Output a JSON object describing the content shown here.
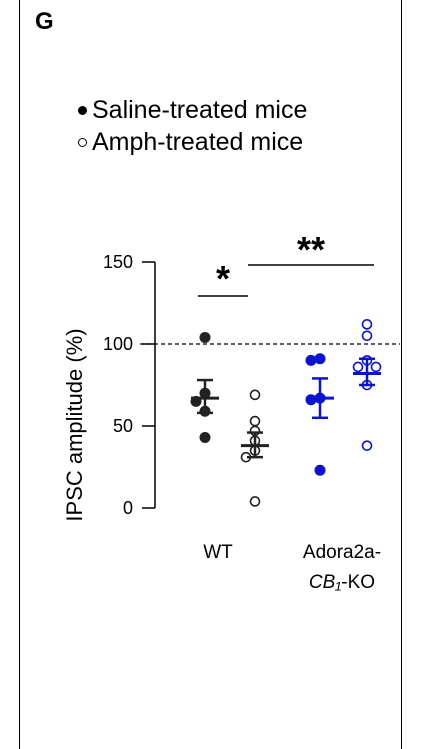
{
  "panel": {
    "letter": "G",
    "legend": [
      {
        "label": "Saline-treated mice",
        "marker": "filled"
      },
      {
        "label": "Amph-treated mice",
        "marker": "open"
      }
    ]
  },
  "chart_data": {
    "type": "scatter",
    "ylabel": "IPSC amplitude (%)",
    "ylim": [
      0,
      150
    ],
    "yticks": [
      0,
      50,
      100,
      150
    ],
    "reference_line": 100,
    "groups": [
      {
        "label_line1": "WT",
        "label_line2": "",
        "label_line2_suffix": ""
      },
      {
        "label_line1": "Adora2a-",
        "label_line2": "CB₁",
        "label_line2_suffix": "-KO"
      }
    ],
    "colors": {
      "WT": "#222222",
      "KO": "#0a14d0"
    },
    "series": [
      {
        "group": 0,
        "condition": "Saline",
        "filled": true,
        "color": "#222222",
        "mean": 67,
        "sem_low": 58,
        "sem_high": 78,
        "values": [
          104,
          70,
          65,
          59,
          43
        ]
      },
      {
        "group": 0,
        "condition": "Amph",
        "filled": false,
        "color": "#222222",
        "mean": 38,
        "sem_low": 31,
        "sem_high": 46,
        "values": [
          69,
          53,
          47,
          41,
          35,
          31,
          4
        ]
      },
      {
        "group": 1,
        "condition": "Saline",
        "filled": true,
        "color": "#0a14d0",
        "mean": 67,
        "sem_low": 55,
        "sem_high": 79,
        "values": [
          91,
          90,
          67,
          66,
          23
        ]
      },
      {
        "group": 1,
        "condition": "Amph",
        "filled": false,
        "color": "#0a14d0",
        "mean": 82,
        "sem_low": 75,
        "sem_high": 91,
        "values": [
          112,
          105,
          90,
          86,
          86,
          75,
          38
        ]
      }
    ],
    "significance": [
      {
        "label": "*",
        "from": "WT Saline",
        "to": "WT Amph"
      },
      {
        "label": "**",
        "from": "WT Amph",
        "to": "Adora2a-CB₁-KO Amph"
      }
    ]
  }
}
